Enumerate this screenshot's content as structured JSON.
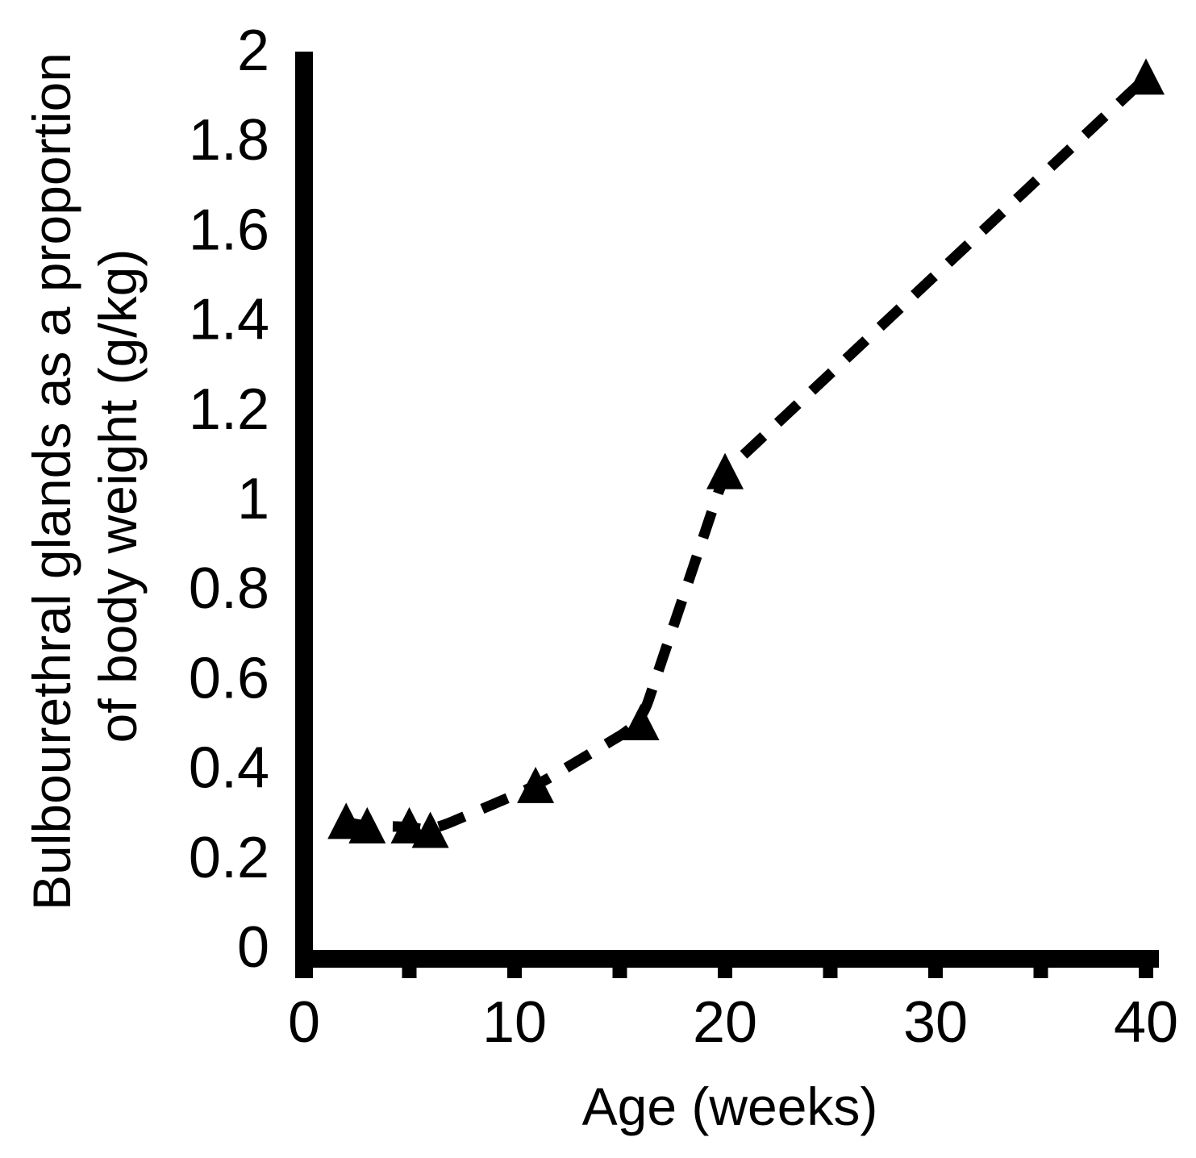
{
  "chart_data": {
    "type": "line",
    "title": "",
    "xlabel": "Age (weeks)",
    "ylabel": "Bulbourethral glands as a proportion of body weight (g/kg)",
    "ylabel_lines": [
      "Bulbourethral glands as a proportion",
      "of body weight (g/kg)"
    ],
    "series": [
      {
        "x": [
          2,
          3,
          5,
          6,
          11,
          16,
          20,
          40
        ],
        "y": [
          0.28,
          0.27,
          0.27,
          0.26,
          0.36,
          0.5,
          1.06,
          1.94
        ],
        "marker": "filled-triangle-up",
        "line_style": "dashed",
        "color": "#000000"
      }
    ],
    "xlim": [
      0,
      40
    ],
    "ylim": [
      0,
      2
    ],
    "x_major_ticks": [
      0,
      10,
      20,
      30,
      40
    ],
    "x_tick_labels": [
      "0",
      "10",
      "20",
      "30",
      "40"
    ],
    "x_minor_ticks": [
      5,
      15,
      25,
      35
    ],
    "y_ticks": [
      0,
      0.2,
      0.4,
      0.6,
      0.8,
      1,
      1.2,
      1.4,
      1.6,
      1.8,
      2
    ],
    "y_tick_labels": [
      "0",
      "0.2",
      "0.4",
      "0.6",
      "0.8",
      "1",
      "1.2",
      "1.4",
      "1.6",
      "1.8",
      "2"
    ],
    "grid": false,
    "legend_position": "none",
    "background": "#ffffff",
    "ink_color": "#000000"
  }
}
